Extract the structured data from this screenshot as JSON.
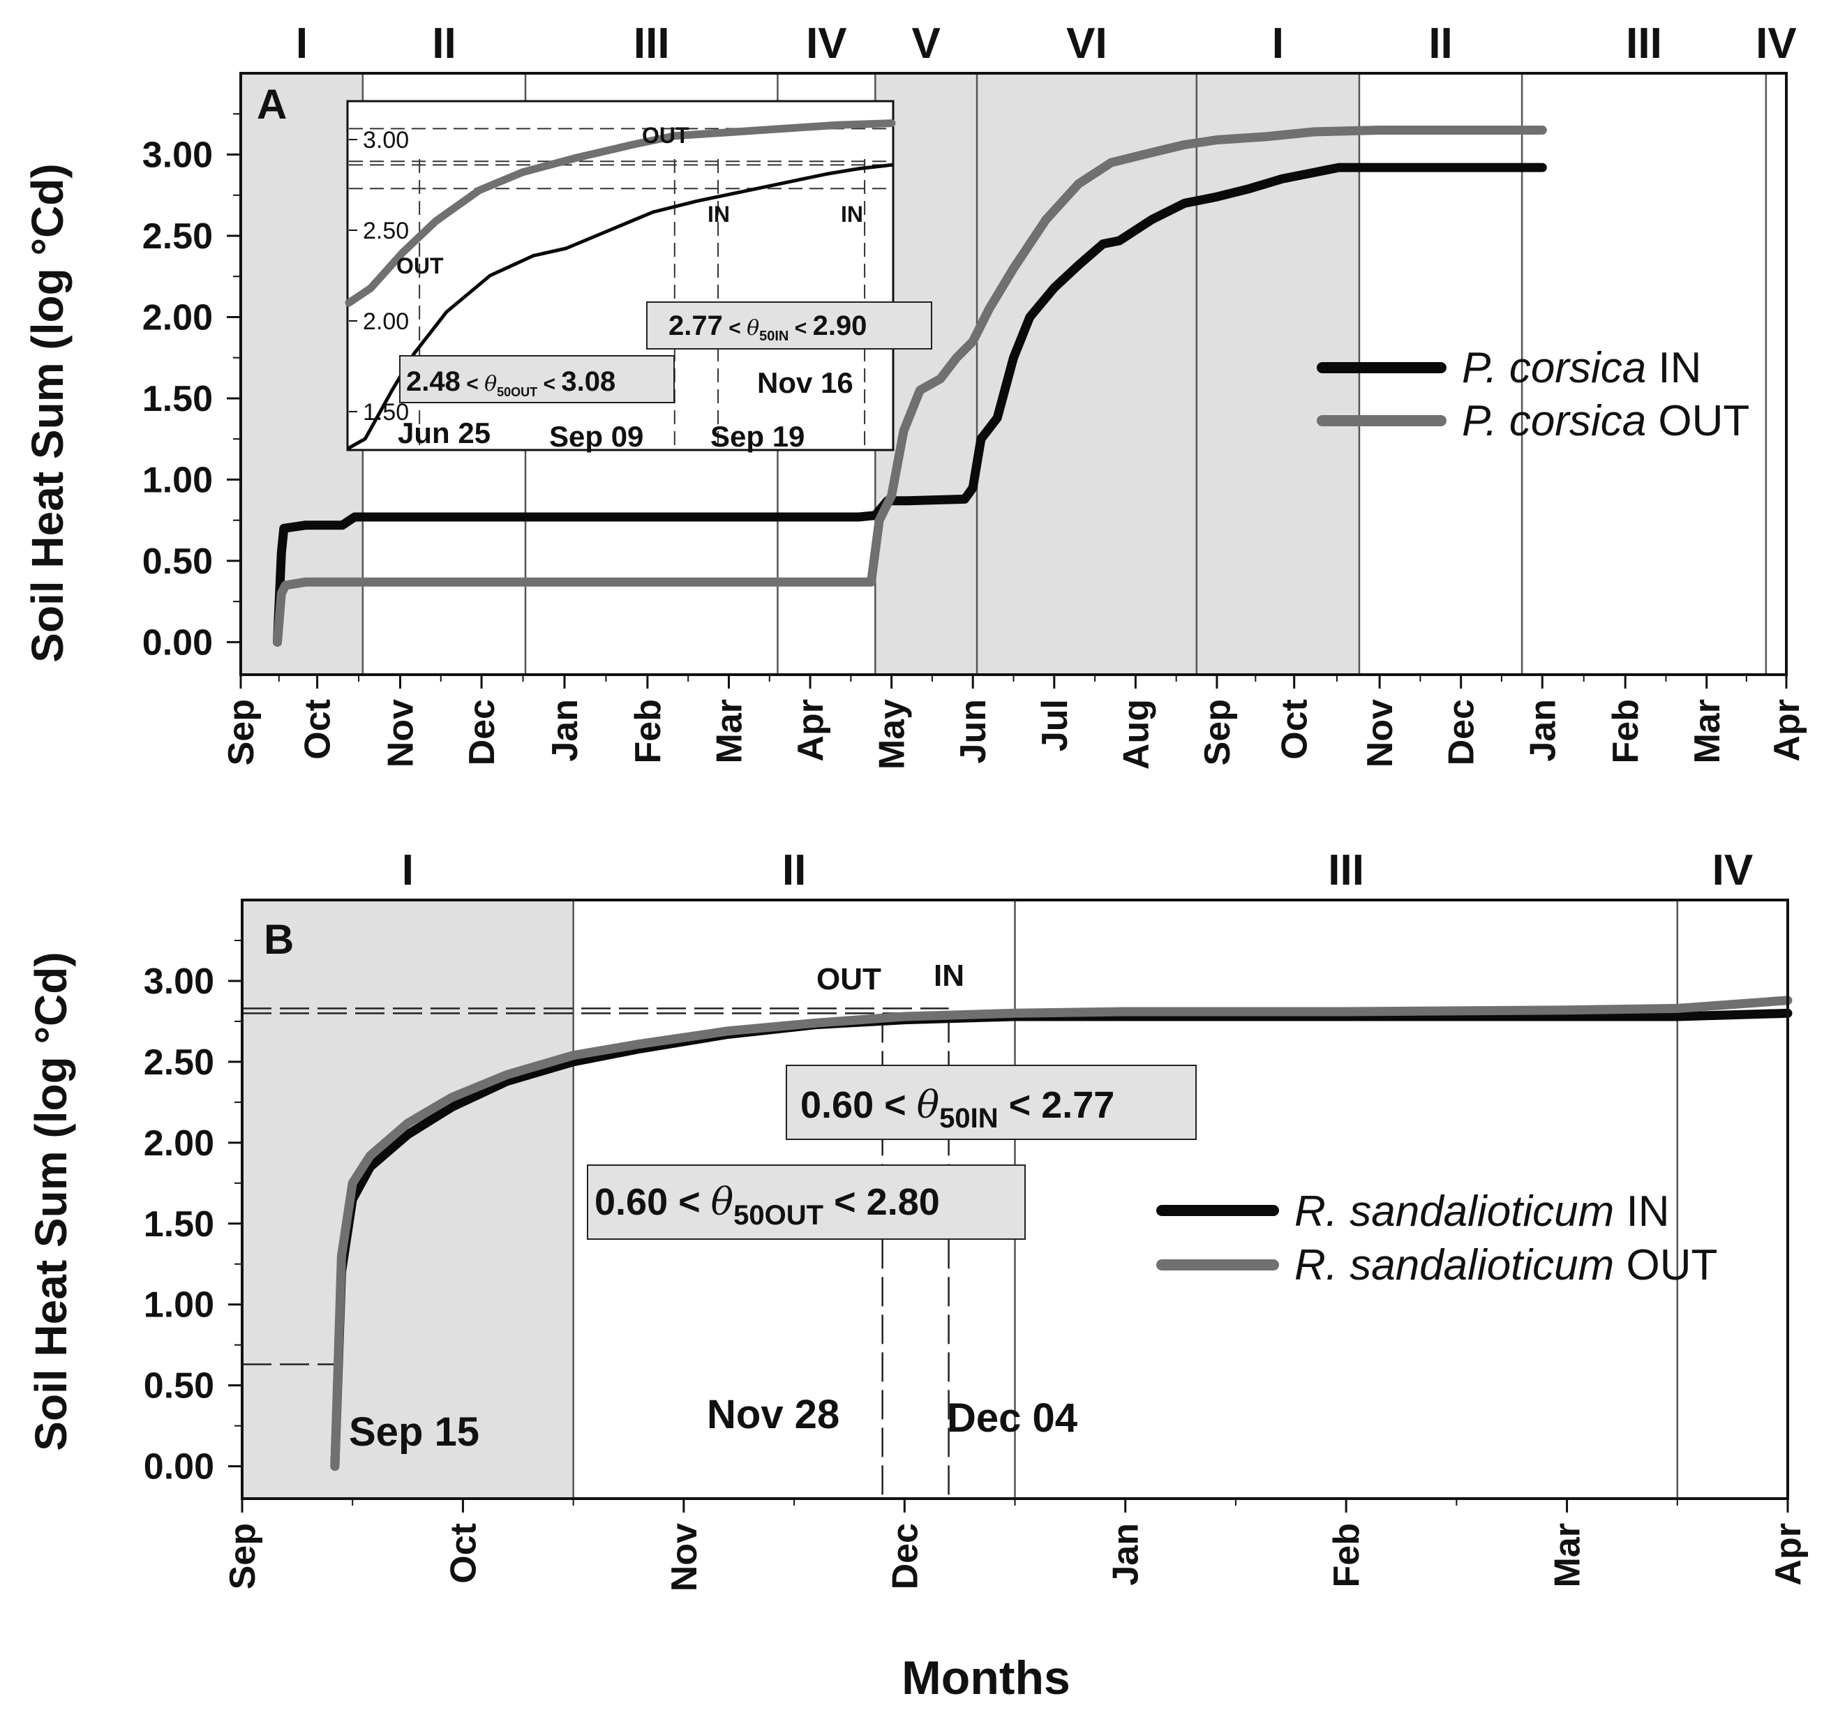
{
  "figure": {
    "xlabel": "Months"
  },
  "colors": {
    "in": "#0a0a0a",
    "out": "#707070",
    "shade": "#e0e0e0",
    "grid": "#555555",
    "box": "#e2e2e2"
  },
  "chart_data": [
    {
      "type": "line",
      "panel": "A",
      "ylabel": "Soil Heat Sum (log °Cd)",
      "ylim": [
        -0.2,
        3.5
      ],
      "yticks": [
        "0.00",
        "0.50",
        "1.00",
        "1.50",
        "2.00",
        "2.50",
        "3.00"
      ],
      "ytick_values": [
        0,
        0.5,
        1.0,
        1.5,
        2.0,
        2.5,
        3.0
      ],
      "xlim": [
        0,
        19
      ],
      "xticks": [
        "Sep",
        "Oct",
        "Nov",
        "Dec",
        "Jan",
        "Feb",
        "Mar",
        "Apr",
        "May",
        "Jun",
        "Jul",
        "Aug",
        "Sep",
        "Oct",
        "Nov",
        "Dec",
        "Jan",
        "Feb",
        "Mar",
        "Apr"
      ],
      "xtick_values": [
        0,
        0.94,
        1.96,
        2.96,
        3.98,
        5.0,
        6.0,
        7.0,
        8.0,
        9.0,
        10.0,
        11.0,
        12.0,
        12.95,
        14.0,
        15.0,
        16.0,
        17.02,
        18.02,
        19.0
      ],
      "phases": [
        {
          "label": "I",
          "start": 0,
          "end": 1.5,
          "shaded": true
        },
        {
          "label": "II",
          "start": 1.5,
          "end": 3.5,
          "shaded": false
        },
        {
          "label": "III",
          "start": 3.5,
          "end": 6.6,
          "shaded": false
        },
        {
          "label": "IV",
          "start": 6.6,
          "end": 7.8,
          "shaded": false
        },
        {
          "label": "V",
          "start": 7.8,
          "end": 9.05,
          "shaded": true
        },
        {
          "label": "VI",
          "start": 9.05,
          "end": 11.75,
          "shaded": true
        },
        {
          "label": "I",
          "start": 11.75,
          "end": 13.75,
          "shaded": true
        },
        {
          "label": "II",
          "start": 13.75,
          "end": 15.75,
          "shaded": false
        },
        {
          "label": "III",
          "start": 15.75,
          "end": 18.75,
          "shaded": false
        },
        {
          "label": "IV",
          "start": 18.75,
          "end": 19,
          "shaded": false
        }
      ],
      "series": [
        {
          "name": "P. corsica IN",
          "legend_italic": "P. corsica",
          "legend_suffix": " IN",
          "key": "in",
          "points": [
            [
              0.45,
              0
            ],
            [
              0.5,
              0.55
            ],
            [
              0.53,
              0.7
            ],
            [
              0.8,
              0.72
            ],
            [
              1.25,
              0.72
            ],
            [
              1.4,
              0.77
            ],
            [
              4,
              0.77
            ],
            [
              7.6,
              0.77
            ],
            [
              7.8,
              0.78
            ],
            [
              7.95,
              0.87
            ],
            [
              8.2,
              0.87
            ],
            [
              8.9,
              0.88
            ],
            [
              9.0,
              0.95
            ],
            [
              9.1,
              1.25
            ],
            [
              9.3,
              1.38
            ],
            [
              9.5,
              1.75
            ],
            [
              9.7,
              2.0
            ],
            [
              10.0,
              2.18
            ],
            [
              10.3,
              2.32
            ],
            [
              10.6,
              2.45
            ],
            [
              10.8,
              2.47
            ],
            [
              11.2,
              2.6
            ],
            [
              11.6,
              2.7
            ],
            [
              12.0,
              2.74
            ],
            [
              12.4,
              2.79
            ],
            [
              12.8,
              2.85
            ],
            [
              13.2,
              2.89
            ],
            [
              13.5,
              2.92
            ],
            [
              14,
              2.92
            ],
            [
              15,
              2.92
            ],
            [
              16,
              2.92
            ]
          ]
        },
        {
          "name": "P. corsica OUT",
          "legend_italic": "P. corsica",
          "legend_suffix": " OUT",
          "key": "out",
          "points": [
            [
              0.45,
              0
            ],
            [
              0.5,
              0.3
            ],
            [
              0.55,
              0.35
            ],
            [
              0.8,
              0.37
            ],
            [
              2,
              0.37
            ],
            [
              4,
              0.37
            ],
            [
              6,
              0.37
            ],
            [
              7.75,
              0.37
            ],
            [
              7.85,
              0.75
            ],
            [
              8.0,
              0.9
            ],
            [
              8.15,
              1.3
            ],
            [
              8.35,
              1.55
            ],
            [
              8.6,
              1.62
            ],
            [
              8.8,
              1.75
            ],
            [
              9.0,
              1.85
            ],
            [
              9.2,
              2.05
            ],
            [
              9.5,
              2.3
            ],
            [
              9.9,
              2.6
            ],
            [
              10.3,
              2.82
            ],
            [
              10.7,
              2.95
            ],
            [
              11.1,
              3.0
            ],
            [
              11.6,
              3.06
            ],
            [
              12.0,
              3.09
            ],
            [
              12.6,
              3.11
            ],
            [
              13.2,
              3.14
            ],
            [
              14,
              3.15
            ],
            [
              15,
              3.15
            ],
            [
              16,
              3.15
            ]
          ]
        }
      ],
      "legend": {
        "position": "right"
      },
      "inset": {
        "xlim": [
          0,
          100
        ],
        "ylim": [
          1.3,
          3.2
        ],
        "yticks": [
          "1.50",
          "2.00",
          "2.50",
          "3.00"
        ],
        "ytick_values": [
          1.5,
          2.0,
          2.5,
          3.0
        ],
        "date_labels": [
          "Jun 25",
          "Sep 09",
          "Sep 19",
          "Nov 16"
        ],
        "series": [
          {
            "key": "in",
            "points": [
              [
                0,
                1.3
              ],
              [
                3,
                1.35
              ],
              [
                8,
                1.62
              ],
              [
                12,
                1.82
              ],
              [
                18,
                2.05
              ],
              [
                26,
                2.25
              ],
              [
                34,
                2.36
              ],
              [
                40,
                2.4
              ],
              [
                48,
                2.5
              ],
              [
                56,
                2.6
              ],
              [
                64,
                2.66
              ],
              [
                72,
                2.71
              ],
              [
                80,
                2.76
              ],
              [
                88,
                2.81
              ],
              [
                94,
                2.84
              ],
              [
                100,
                2.86
              ]
            ]
          },
          {
            "key": "out",
            "points": [
              [
                0,
                2.1
              ],
              [
                4,
                2.18
              ],
              [
                10,
                2.38
              ],
              [
                16,
                2.55
              ],
              [
                24,
                2.72
              ],
              [
                32,
                2.82
              ],
              [
                42,
                2.9
              ],
              [
                52,
                2.97
              ],
              [
                60,
                3.02
              ],
              [
                70,
                3.04
              ],
              [
                80,
                3.06
              ],
              [
                90,
                3.08
              ],
              [
                100,
                3.09
              ]
            ]
          }
        ],
        "hlines": [
          3.06,
          2.88,
          2.86,
          2.73
        ],
        "vlines": [
          13,
          60,
          68,
          95
        ],
        "labels": {
          "out_top": "OUT",
          "out_left": "OUT",
          "in_mid": "IN",
          "in_right": "IN"
        },
        "box_in": {
          "low": "2.77",
          "lt1": " < ",
          "theta": "θ",
          "sub": "50IN",
          "lt2": " < ",
          "high": "2.90"
        },
        "box_out": {
          "low": "2.48",
          "lt1": " < ",
          "theta": "θ",
          "sub": "50OUT",
          "lt2": " < ",
          "high": "3.08"
        }
      }
    },
    {
      "type": "line",
      "panel": "B",
      "ylabel": "Soil Heat Sum (log °Cd)",
      "ylim": [
        -0.2,
        3.5
      ],
      "yticks": [
        "0.00",
        "0.50",
        "1.00",
        "1.50",
        "2.00",
        "2.50",
        "3.00"
      ],
      "ytick_values": [
        0,
        0.5,
        1.0,
        1.5,
        2.0,
        2.5,
        3.0
      ],
      "xlim": [
        0,
        7
      ],
      "xticks": [
        "Sep",
        "Oct",
        "Nov",
        "Dec",
        "Jan",
        "Feb",
        "Mar",
        "Apr"
      ],
      "xtick_values": [
        0,
        1,
        2,
        3,
        4,
        5,
        6,
        7
      ],
      "phases": [
        {
          "label": "I",
          "start": 0,
          "end": 1.5,
          "shaded": true
        },
        {
          "label": "II",
          "start": 1.5,
          "end": 3.5,
          "shaded": false
        },
        {
          "label": "III",
          "start": 3.5,
          "end": 6.5,
          "shaded": false
        },
        {
          "label": "IV",
          "start": 6.5,
          "end": 7,
          "shaded": false
        }
      ],
      "series": [
        {
          "name": "R. sandalioticum IN",
          "legend_italic": "R. sandalioticum",
          "legend_suffix": " IN",
          "key": "in",
          "points": [
            [
              0.42,
              0
            ],
            [
              0.45,
              1.2
            ],
            [
              0.5,
              1.65
            ],
            [
              0.58,
              1.85
            ],
            [
              0.75,
              2.05
            ],
            [
              0.95,
              2.22
            ],
            [
              1.2,
              2.38
            ],
            [
              1.5,
              2.5
            ],
            [
              1.8,
              2.58
            ],
            [
              2.2,
              2.67
            ],
            [
              2.6,
              2.73
            ],
            [
              3,
              2.76
            ],
            [
              3.5,
              2.78
            ],
            [
              4,
              2.78
            ],
            [
              5,
              2.78
            ],
            [
              6,
              2.78
            ],
            [
              6.5,
              2.78
            ],
            [
              7,
              2.8
            ]
          ]
        },
        {
          "name": "R. sandalioticum OUT",
          "legend_italic": "R. sandalioticum",
          "legend_suffix": " OUT",
          "key": "out",
          "points": [
            [
              0.42,
              0
            ],
            [
              0.45,
              1.3
            ],
            [
              0.5,
              1.75
            ],
            [
              0.58,
              1.92
            ],
            [
              0.75,
              2.12
            ],
            [
              0.95,
              2.28
            ],
            [
              1.2,
              2.42
            ],
            [
              1.5,
              2.54
            ],
            [
              1.8,
              2.61
            ],
            [
              2.2,
              2.69
            ],
            [
              2.6,
              2.74
            ],
            [
              3,
              2.78
            ],
            [
              3.5,
              2.8
            ],
            [
              4,
              2.81
            ],
            [
              5,
              2.81
            ],
            [
              6,
              2.82
            ],
            [
              6.5,
              2.83
            ],
            [
              7,
              2.88
            ]
          ]
        }
      ],
      "legend": {
        "position": "right"
      },
      "annotations": {
        "sep15": "Sep 15",
        "nov28": "Nov 28",
        "dec04": "Dec 04",
        "out": "OUT",
        "in": "IN",
        "box_in": {
          "low": "0.60",
          "lt1": " < ",
          "theta": "θ",
          "sub": "50IN",
          "lt2": " < ",
          "high": "2.77"
        },
        "box_out": {
          "low": "0.60",
          "lt1": " < ",
          "theta": "θ",
          "sub": "50OUT",
          "lt2": " < ",
          "high": "2.80"
        },
        "sep15_x": 0.42,
        "sep15_y": 0.63,
        "nov28_x": 2.9,
        "dec04_x": 3.2,
        "hline_in": 2.8,
        "hline_out": 2.83
      }
    }
  ]
}
